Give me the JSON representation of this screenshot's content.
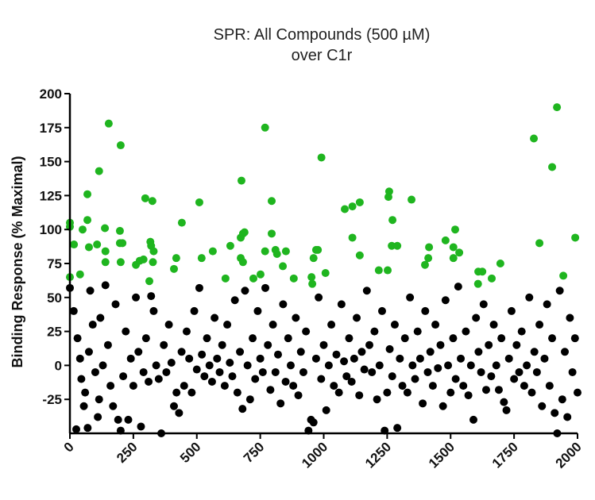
{
  "chart_data": {
    "type": "scatter",
    "title": [
      "SPR: All Compounds (500 µM)",
      "over C1r"
    ],
    "xlabel": "",
    "ylabel": "Binding Response  (% Maximal)",
    "xlim": [
      0,
      2000
    ],
    "ylim": [
      -50,
      200
    ],
    "x_ticks": [
      "0",
      "250",
      "500",
      "750",
      "1000",
      "1250",
      "1500",
      "1750",
      "2000"
    ],
    "y_ticks": [
      "-25",
      "0",
      "25",
      "50",
      "75",
      "100",
      "125",
      "150",
      "175",
      "200"
    ],
    "grid": false,
    "colors": {
      "hit": "#1fb51f",
      "non_hit": "#000000"
    },
    "series": [
      {
        "color": "#1fb51f",
        "points": [
          [
            0,
            105
          ],
          [
            0,
            102
          ],
          [
            16,
            89
          ],
          [
            0,
            65
          ],
          [
            40,
            67
          ],
          [
            50,
            100
          ],
          [
            69,
            126
          ],
          [
            69,
            107
          ],
          [
            75,
            87
          ],
          [
            107,
            89
          ],
          [
            115,
            143
          ],
          [
            138,
            101
          ],
          [
            140,
            84
          ],
          [
            140,
            76
          ],
          [
            153,
            178
          ],
          [
            197,
            99
          ],
          [
            197,
            90
          ],
          [
            207,
            90
          ],
          [
            200,
            162
          ],
          [
            200,
            76
          ],
          [
            260,
            74
          ],
          [
            275,
            77
          ],
          [
            290,
            78
          ],
          [
            297,
            123
          ],
          [
            325,
            121
          ],
          [
            317,
            91
          ],
          [
            320,
            88
          ],
          [
            330,
            84
          ],
          [
            327,
            76
          ],
          [
            313,
            62
          ],
          [
            410,
            71
          ],
          [
            419,
            79
          ],
          [
            441,
            105
          ],
          [
            510,
            120
          ],
          [
            519,
            79
          ],
          [
            563,
            84
          ],
          [
            613,
            64
          ],
          [
            632,
            88
          ],
          [
            676,
            136
          ],
          [
            673,
            94
          ],
          [
            682,
            97
          ],
          [
            688,
            98
          ],
          [
            673,
            79
          ],
          [
            682,
            76
          ],
          [
            723,
            64
          ],
          [
            751,
            67
          ],
          [
            769,
            175
          ],
          [
            769,
            84
          ],
          [
            795,
            121
          ],
          [
            795,
            97
          ],
          [
            810,
            85
          ],
          [
            816,
            82
          ],
          [
            839,
            73
          ],
          [
            851,
            84
          ],
          [
            882,
            64
          ],
          [
            952,
            65
          ],
          [
            955,
            60
          ],
          [
            960,
            79
          ],
          [
            970,
            85
          ],
          [
            991,
            153
          ],
          [
            1007,
            68
          ],
          [
            977,
            85
          ],
          [
            1083,
            115
          ],
          [
            1113,
            117
          ],
          [
            1142,
            120
          ],
          [
            1113,
            94
          ],
          [
            1142,
            81
          ],
          [
            1258,
            128
          ],
          [
            1255,
            124
          ],
          [
            1346,
            122
          ],
          [
            1271,
            107
          ],
          [
            1268,
            88
          ],
          [
            1290,
            88
          ],
          [
            1217,
            70
          ],
          [
            1252,
            70
          ],
          [
            1415,
            87
          ],
          [
            1412,
            79
          ],
          [
            1399,
            74
          ],
          [
            1480,
            92
          ],
          [
            1518,
            100
          ],
          [
            1511,
            87
          ],
          [
            1534,
            83
          ],
          [
            1511,
            79
          ],
          [
            1609,
            69
          ],
          [
            1625,
            69
          ],
          [
            1608,
            60
          ],
          [
            1662,
            64
          ],
          [
            1696,
            75
          ],
          [
            1828,
            167
          ],
          [
            1900,
            146
          ],
          [
            1919,
            190
          ],
          [
            1850,
            90
          ],
          [
            1991,
            94
          ],
          [
            1944,
            66
          ]
        ]
      },
      {
        "color": "#000000",
        "points": [
          [
            0,
            57
          ],
          [
            15,
            40
          ],
          [
            25,
            -47
          ],
          [
            30,
            20
          ],
          [
            40,
            5
          ],
          [
            45,
            -10
          ],
          [
            55,
            -30
          ],
          [
            60,
            -20
          ],
          [
            70,
            -46
          ],
          [
            75,
            10
          ],
          [
            80,
            55
          ],
          [
            90,
            30
          ],
          [
            100,
            -5
          ],
          [
            110,
            -38
          ],
          [
            115,
            -25
          ],
          [
            120,
            35
          ],
          [
            130,
            0
          ],
          [
            140,
            59
          ],
          [
            150,
            15
          ],
          [
            160,
            -15
          ],
          [
            170,
            -30
          ],
          [
            180,
            45
          ],
          [
            190,
            -40
          ],
          [
            200,
            -48
          ],
          [
            210,
            -8
          ],
          [
            220,
            25
          ],
          [
            230,
            -40
          ],
          [
            240,
            5
          ],
          [
            250,
            -15
          ],
          [
            260,
            50
          ],
          [
            270,
            10
          ],
          [
            280,
            -45
          ],
          [
            290,
            -5
          ],
          [
            300,
            20
          ],
          [
            310,
            -12
          ],
          [
            320,
            51
          ],
          [
            330,
            40
          ],
          [
            340,
            0
          ],
          [
            350,
            -10
          ],
          [
            360,
            -50
          ],
          [
            370,
            15
          ],
          [
            380,
            -5
          ],
          [
            390,
            30
          ],
          [
            400,
            2
          ],
          [
            410,
            -30
          ],
          [
            420,
            -20
          ],
          [
            430,
            -35
          ],
          [
            440,
            10
          ],
          [
            450,
            -15
          ],
          [
            460,
            25
          ],
          [
            470,
            5
          ],
          [
            480,
            -20
          ],
          [
            490,
            40
          ],
          [
            500,
            -3
          ],
          [
            510,
            57
          ],
          [
            520,
            8
          ],
          [
            530,
            -8
          ],
          [
            540,
            20
          ],
          [
            550,
            0
          ],
          [
            560,
            -12
          ],
          [
            570,
            35
          ],
          [
            580,
            5
          ],
          [
            590,
            -5
          ],
          [
            600,
            15
          ],
          [
            610,
            -15
          ],
          [
            620,
            30
          ],
          [
            630,
            2
          ],
          [
            640,
            -8
          ],
          [
            650,
            48
          ],
          [
            660,
            -20
          ],
          [
            670,
            10
          ],
          [
            680,
            -32
          ],
          [
            690,
            55
          ],
          [
            700,
            0
          ],
          [
            710,
            -25
          ],
          [
            720,
            20
          ],
          [
            730,
            -10
          ],
          [
            740,
            40
          ],
          [
            750,
            5
          ],
          [
            760,
            -5
          ],
          [
            770,
            57
          ],
          [
            780,
            15
          ],
          [
            790,
            -18
          ],
          [
            800,
            30
          ],
          [
            810,
            -5
          ],
          [
            820,
            8
          ],
          [
            830,
            -28
          ],
          [
            840,
            45
          ],
          [
            850,
            -12
          ],
          [
            860,
            20
          ],
          [
            870,
            0
          ],
          [
            880,
            -15
          ],
          [
            890,
            35
          ],
          [
            900,
            -22
          ],
          [
            910,
            10
          ],
          [
            920,
            -5
          ],
          [
            930,
            25
          ],
          [
            940,
            -48
          ],
          [
            950,
            -40
          ],
          [
            960,
            -42
          ],
          [
            970,
            5
          ],
          [
            980,
            50
          ],
          [
            990,
            -10
          ],
          [
            1000,
            15
          ],
          [
            1010,
            -33
          ],
          [
            1020,
            0
          ],
          [
            1030,
            30
          ],
          [
            1040,
            -15
          ],
          [
            1050,
            8
          ],
          [
            1060,
            -20
          ],
          [
            1070,
            45
          ],
          [
            1080,
            3
          ],
          [
            1090,
            -8
          ],
          [
            1100,
            20
          ],
          [
            1110,
            -12
          ],
          [
            1120,
            5
          ],
          [
            1130,
            35
          ],
          [
            1140,
            -22
          ],
          [
            1150,
            10
          ],
          [
            1160,
            -3
          ],
          [
            1170,
            55
          ],
          [
            1180,
            15
          ],
          [
            1190,
            -5
          ],
          [
            1200,
            25
          ],
          [
            1210,
            -25
          ],
          [
            1220,
            0
          ],
          [
            1230,
            40
          ],
          [
            1240,
            -48
          ],
          [
            1250,
            -20
          ],
          [
            1260,
            12
          ],
          [
            1270,
            -8
          ],
          [
            1280,
            30
          ],
          [
            1290,
            -46
          ],
          [
            1300,
            5
          ],
          [
            1310,
            -15
          ],
          [
            1320,
            20
          ],
          [
            1330,
            -20
          ],
          [
            1340,
            50
          ],
          [
            1350,
            0
          ],
          [
            1360,
            -10
          ],
          [
            1370,
            25
          ],
          [
            1380,
            5
          ],
          [
            1390,
            -28
          ],
          [
            1400,
            40
          ],
          [
            1410,
            -5
          ],
          [
            1420,
            10
          ],
          [
            1430,
            -15
          ],
          [
            1440,
            30
          ],
          [
            1450,
            -2
          ],
          [
            1460,
            15
          ],
          [
            1470,
            -30
          ],
          [
            1480,
            48
          ],
          [
            1490,
            0
          ],
          [
            1500,
            -20
          ],
          [
            1510,
            20
          ],
          [
            1520,
            -10
          ],
          [
            1530,
            58
          ],
          [
            1540,
            5
          ],
          [
            1550,
            -15
          ],
          [
            1560,
            25
          ],
          [
            1570,
            -22
          ],
          [
            1580,
            0
          ],
          [
            1590,
            -40
          ],
          [
            1600,
            35
          ],
          [
            1610,
            10
          ],
          [
            1620,
            -5
          ],
          [
            1630,
            45
          ],
          [
            1640,
            -18
          ],
          [
            1650,
            15
          ],
          [
            1660,
            -8
          ],
          [
            1670,
            30
          ],
          [
            1680,
            0
          ],
          [
            1690,
            -18
          ],
          [
            1700,
            20
          ],
          [
            1710,
            -27
          ],
          [
            1720,
            -33
          ],
          [
            1730,
            5
          ],
          [
            1740,
            40
          ],
          [
            1750,
            -10
          ],
          [
            1760,
            15
          ],
          [
            1770,
            -5
          ],
          [
            1780,
            25
          ],
          [
            1790,
            -15
          ],
          [
            1800,
            0
          ],
          [
            1810,
            50
          ],
          [
            1820,
            -20
          ],
          [
            1830,
            10
          ],
          [
            1840,
            -5
          ],
          [
            1850,
            30
          ],
          [
            1860,
            -30
          ],
          [
            1870,
            5
          ],
          [
            1880,
            45
          ],
          [
            1890,
            -15
          ],
          [
            1900,
            20
          ],
          [
            1910,
            -35
          ],
          [
            1920,
            -50
          ],
          [
            1930,
            55
          ],
          [
            1940,
            -25
          ],
          [
            1950,
            10
          ],
          [
            1960,
            -38
          ],
          [
            1970,
            35
          ],
          [
            1980,
            -5
          ],
          [
            1990,
            20
          ],
          [
            2000,
            -20
          ]
        ]
      }
    ]
  }
}
